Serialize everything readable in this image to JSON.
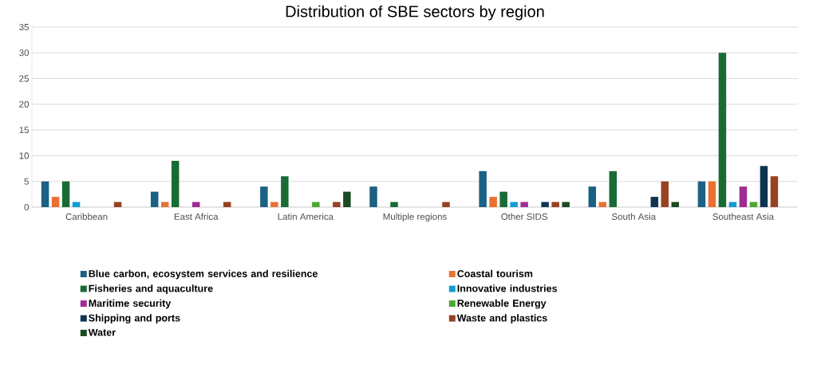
{
  "chart_data": {
    "type": "bar",
    "title": "Distribution of SBE sectors by region",
    "categories": [
      "Caribbean",
      "East Africa",
      "Latin America",
      "Multiple regions",
      "Other SIDS",
      "South Asia",
      "Southeast Asia"
    ],
    "series": [
      {
        "name": "Blue carbon, ecosystem services and resilience",
        "color": "#1a6184",
        "values": [
          5,
          3,
          4,
          4,
          7,
          4,
          5
        ]
      },
      {
        "name": "Coastal tourism",
        "color": "#e97132",
        "values": [
          2,
          1,
          1,
          null,
          2,
          1,
          5
        ]
      },
      {
        "name": "Fisheries and aquaculture",
        "color": "#196b36",
        "values": [
          5,
          9,
          6,
          1,
          3,
          7,
          30
        ]
      },
      {
        "name": "Innovative industries",
        "color": "#0f9ed5",
        "values": [
          1,
          null,
          null,
          null,
          1,
          null,
          1
        ]
      },
      {
        "name": "Maritime security",
        "color": "#a02b93",
        "values": [
          null,
          1,
          null,
          null,
          1,
          null,
          4
        ]
      },
      {
        "name": "Renewable Energy",
        "color": "#4ea72e",
        "values": [
          null,
          null,
          1,
          null,
          null,
          null,
          1
        ]
      },
      {
        "name": "Shipping and ports",
        "color": "#0e3550",
        "values": [
          null,
          null,
          null,
          null,
          1,
          2,
          8
        ]
      },
      {
        "name": "Waste and plastics",
        "color": "#974223",
        "values": [
          1,
          1,
          1,
          1,
          1,
          5,
          6
        ]
      },
      {
        "name": "Water",
        "color": "#1b4a22",
        "values": [
          null,
          null,
          3,
          null,
          1,
          1,
          null
        ]
      }
    ],
    "ylim": [
      0,
      35
    ],
    "yticks": [
      0,
      5,
      10,
      15,
      20,
      25,
      30,
      35
    ],
    "grid": "y",
    "legend": "bottom"
  }
}
